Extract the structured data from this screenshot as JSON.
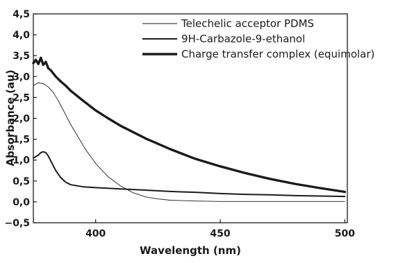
{
  "chart_data": {
    "type": "line",
    "title": "",
    "xlabel": "Wavelength (nm)",
    "ylabel": "Absorbance (au)",
    "xlim": [
      375,
      501
    ],
    "ylim": [
      -0.5,
      4.5
    ],
    "xticks": [
      400,
      450,
      500
    ],
    "xtick_labels": [
      "400",
      "450",
      "500"
    ],
    "yticks": [
      -0.5,
      0.0,
      0.5,
      1.0,
      1.5,
      2.0,
      2.5,
      3.0,
      3.5,
      4.0,
      4.5
    ],
    "ytick_labels": [
      "−0,5",
      "0,0",
      "0,5",
      "1,0",
      "1,5",
      "2,0",
      "2,5",
      "3,0",
      "3,5",
      "4,0",
      "4,5"
    ],
    "grid": false,
    "legend_position": "top-right",
    "series": [
      {
        "name": "Telechelic acceptor PDMS",
        "color": "#1a1a1a",
        "weight": "thin",
        "x": [
          375,
          377,
          379,
          381,
          383,
          385,
          387,
          390,
          393,
          396,
          400,
          405,
          410,
          415,
          420,
          425,
          430,
          440,
          450,
          460,
          470,
          480,
          490,
          500
        ],
        "y": [
          2.78,
          2.85,
          2.83,
          2.75,
          2.62,
          2.42,
          2.2,
          1.85,
          1.55,
          1.25,
          0.92,
          0.6,
          0.38,
          0.22,
          0.12,
          0.07,
          0.04,
          0.02,
          0.01,
          0.01,
          0.01,
          0.01,
          0.01,
          0.01
        ]
      },
      {
        "name": "9H-Carbazole-9-ethanol",
        "color": "#1a1a1a",
        "weight": "medium",
        "x": [
          375,
          377,
          378,
          379,
          380,
          381,
          382,
          384,
          386,
          388,
          390,
          395,
          400,
          410,
          420,
          430,
          440,
          450,
          460,
          470,
          480,
          490,
          500
        ],
        "y": [
          1.05,
          1.12,
          1.18,
          1.2,
          1.18,
          1.1,
          0.98,
          0.75,
          0.58,
          0.47,
          0.41,
          0.36,
          0.34,
          0.31,
          0.28,
          0.25,
          0.23,
          0.2,
          0.18,
          0.17,
          0.15,
          0.14,
          0.13
        ]
      },
      {
        "name": "Charge transfer complex (equimolar)",
        "color": "#1a1a1a",
        "weight": "thick",
        "x": [
          375,
          376,
          377,
          378,
          379,
          380,
          381,
          382,
          384,
          386,
          388,
          390,
          395,
          400,
          405,
          410,
          420,
          430,
          440,
          450,
          460,
          470,
          480,
          490,
          500
        ],
        "y": [
          3.32,
          3.4,
          3.3,
          3.45,
          3.28,
          3.35,
          3.2,
          3.15,
          3.0,
          2.88,
          2.78,
          2.66,
          2.42,
          2.19,
          2.0,
          1.82,
          1.52,
          1.26,
          1.03,
          0.85,
          0.69,
          0.55,
          0.43,
          0.33,
          0.24
        ]
      }
    ]
  }
}
